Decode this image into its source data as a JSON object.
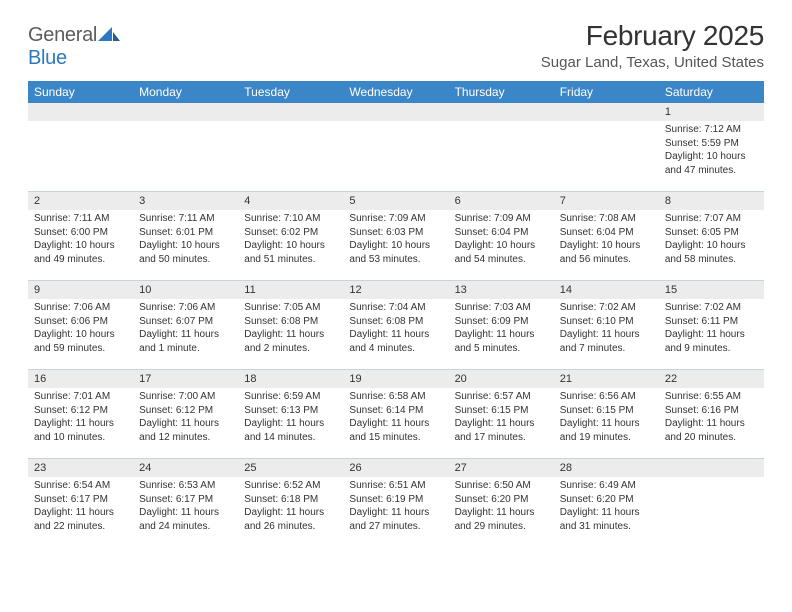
{
  "brand": {
    "general": "General",
    "blue": "Blue"
  },
  "title": "February 2025",
  "location": "Sugar Land, Texas, United States",
  "colors": {
    "header_bg": "#3b86c6",
    "header_text": "#ffffff",
    "logo_gray": "#5c5c5c",
    "logo_blue": "#2f78bf",
    "daybar_bg": "#ececec",
    "rule": "#c9d3dc",
    "text": "#333333"
  },
  "weekdays": [
    "Sunday",
    "Monday",
    "Tuesday",
    "Wednesday",
    "Thursday",
    "Friday",
    "Saturday"
  ],
  "weeks": [
    [
      {
        "n": "",
        "empty": true
      },
      {
        "n": "",
        "empty": true
      },
      {
        "n": "",
        "empty": true
      },
      {
        "n": "",
        "empty": true
      },
      {
        "n": "",
        "empty": true
      },
      {
        "n": "",
        "empty": true
      },
      {
        "n": "1",
        "sunrise": "Sunrise: 7:12 AM",
        "sunset": "Sunset: 5:59 PM",
        "daylight1": "Daylight: 10 hours",
        "daylight2": "and 47 minutes."
      }
    ],
    [
      {
        "n": "2",
        "sunrise": "Sunrise: 7:11 AM",
        "sunset": "Sunset: 6:00 PM",
        "daylight1": "Daylight: 10 hours",
        "daylight2": "and 49 minutes."
      },
      {
        "n": "3",
        "sunrise": "Sunrise: 7:11 AM",
        "sunset": "Sunset: 6:01 PM",
        "daylight1": "Daylight: 10 hours",
        "daylight2": "and 50 minutes."
      },
      {
        "n": "4",
        "sunrise": "Sunrise: 7:10 AM",
        "sunset": "Sunset: 6:02 PM",
        "daylight1": "Daylight: 10 hours",
        "daylight2": "and 51 minutes."
      },
      {
        "n": "5",
        "sunrise": "Sunrise: 7:09 AM",
        "sunset": "Sunset: 6:03 PM",
        "daylight1": "Daylight: 10 hours",
        "daylight2": "and 53 minutes."
      },
      {
        "n": "6",
        "sunrise": "Sunrise: 7:09 AM",
        "sunset": "Sunset: 6:04 PM",
        "daylight1": "Daylight: 10 hours",
        "daylight2": "and 54 minutes."
      },
      {
        "n": "7",
        "sunrise": "Sunrise: 7:08 AM",
        "sunset": "Sunset: 6:04 PM",
        "daylight1": "Daylight: 10 hours",
        "daylight2": "and 56 minutes."
      },
      {
        "n": "8",
        "sunrise": "Sunrise: 7:07 AM",
        "sunset": "Sunset: 6:05 PM",
        "daylight1": "Daylight: 10 hours",
        "daylight2": "and 58 minutes."
      }
    ],
    [
      {
        "n": "9",
        "sunrise": "Sunrise: 7:06 AM",
        "sunset": "Sunset: 6:06 PM",
        "daylight1": "Daylight: 10 hours",
        "daylight2": "and 59 minutes."
      },
      {
        "n": "10",
        "sunrise": "Sunrise: 7:06 AM",
        "sunset": "Sunset: 6:07 PM",
        "daylight1": "Daylight: 11 hours",
        "daylight2": "and 1 minute."
      },
      {
        "n": "11",
        "sunrise": "Sunrise: 7:05 AM",
        "sunset": "Sunset: 6:08 PM",
        "daylight1": "Daylight: 11 hours",
        "daylight2": "and 2 minutes."
      },
      {
        "n": "12",
        "sunrise": "Sunrise: 7:04 AM",
        "sunset": "Sunset: 6:08 PM",
        "daylight1": "Daylight: 11 hours",
        "daylight2": "and 4 minutes."
      },
      {
        "n": "13",
        "sunrise": "Sunrise: 7:03 AM",
        "sunset": "Sunset: 6:09 PM",
        "daylight1": "Daylight: 11 hours",
        "daylight2": "and 5 minutes."
      },
      {
        "n": "14",
        "sunrise": "Sunrise: 7:02 AM",
        "sunset": "Sunset: 6:10 PM",
        "daylight1": "Daylight: 11 hours",
        "daylight2": "and 7 minutes."
      },
      {
        "n": "15",
        "sunrise": "Sunrise: 7:02 AM",
        "sunset": "Sunset: 6:11 PM",
        "daylight1": "Daylight: 11 hours",
        "daylight2": "and 9 minutes."
      }
    ],
    [
      {
        "n": "16",
        "sunrise": "Sunrise: 7:01 AM",
        "sunset": "Sunset: 6:12 PM",
        "daylight1": "Daylight: 11 hours",
        "daylight2": "and 10 minutes."
      },
      {
        "n": "17",
        "sunrise": "Sunrise: 7:00 AM",
        "sunset": "Sunset: 6:12 PM",
        "daylight1": "Daylight: 11 hours",
        "daylight2": "and 12 minutes."
      },
      {
        "n": "18",
        "sunrise": "Sunrise: 6:59 AM",
        "sunset": "Sunset: 6:13 PM",
        "daylight1": "Daylight: 11 hours",
        "daylight2": "and 14 minutes."
      },
      {
        "n": "19",
        "sunrise": "Sunrise: 6:58 AM",
        "sunset": "Sunset: 6:14 PM",
        "daylight1": "Daylight: 11 hours",
        "daylight2": "and 15 minutes."
      },
      {
        "n": "20",
        "sunrise": "Sunrise: 6:57 AM",
        "sunset": "Sunset: 6:15 PM",
        "daylight1": "Daylight: 11 hours",
        "daylight2": "and 17 minutes."
      },
      {
        "n": "21",
        "sunrise": "Sunrise: 6:56 AM",
        "sunset": "Sunset: 6:15 PM",
        "daylight1": "Daylight: 11 hours",
        "daylight2": "and 19 minutes."
      },
      {
        "n": "22",
        "sunrise": "Sunrise: 6:55 AM",
        "sunset": "Sunset: 6:16 PM",
        "daylight1": "Daylight: 11 hours",
        "daylight2": "and 20 minutes."
      }
    ],
    [
      {
        "n": "23",
        "sunrise": "Sunrise: 6:54 AM",
        "sunset": "Sunset: 6:17 PM",
        "daylight1": "Daylight: 11 hours",
        "daylight2": "and 22 minutes."
      },
      {
        "n": "24",
        "sunrise": "Sunrise: 6:53 AM",
        "sunset": "Sunset: 6:17 PM",
        "daylight1": "Daylight: 11 hours",
        "daylight2": "and 24 minutes."
      },
      {
        "n": "25",
        "sunrise": "Sunrise: 6:52 AM",
        "sunset": "Sunset: 6:18 PM",
        "daylight1": "Daylight: 11 hours",
        "daylight2": "and 26 minutes."
      },
      {
        "n": "26",
        "sunrise": "Sunrise: 6:51 AM",
        "sunset": "Sunset: 6:19 PM",
        "daylight1": "Daylight: 11 hours",
        "daylight2": "and 27 minutes."
      },
      {
        "n": "27",
        "sunrise": "Sunrise: 6:50 AM",
        "sunset": "Sunset: 6:20 PM",
        "daylight1": "Daylight: 11 hours",
        "daylight2": "and 29 minutes."
      },
      {
        "n": "28",
        "sunrise": "Sunrise: 6:49 AM",
        "sunset": "Sunset: 6:20 PM",
        "daylight1": "Daylight: 11 hours",
        "daylight2": "and 31 minutes."
      },
      {
        "n": "",
        "empty": true
      }
    ]
  ]
}
